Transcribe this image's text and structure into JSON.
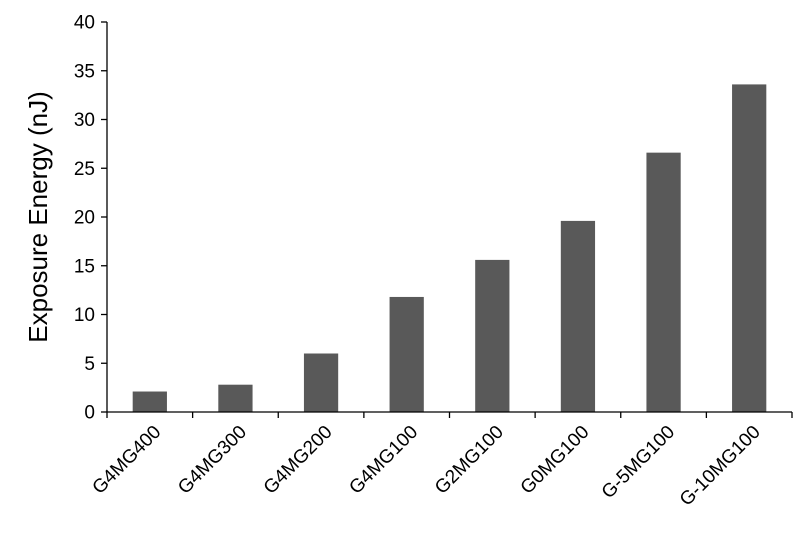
{
  "chart_data": {
    "type": "bar",
    "title": "",
    "xlabel": "",
    "ylabel": "Exposure Energy (nJ)",
    "categories": [
      "G4MG400",
      "G4MG300",
      "G4MG200",
      "G4MG100",
      "G2MG100",
      "G0MG100",
      "G-5MG100",
      "G-10MG100"
    ],
    "values": [
      2.1,
      2.8,
      6.0,
      11.8,
      15.6,
      19.6,
      26.6,
      33.6
    ],
    "ylim": [
      0,
      40
    ],
    "yticks": [
      0,
      5,
      10,
      15,
      20,
      25,
      30,
      35,
      40
    ],
    "grid": false,
    "legend": "none",
    "bar_color": "#595959"
  }
}
